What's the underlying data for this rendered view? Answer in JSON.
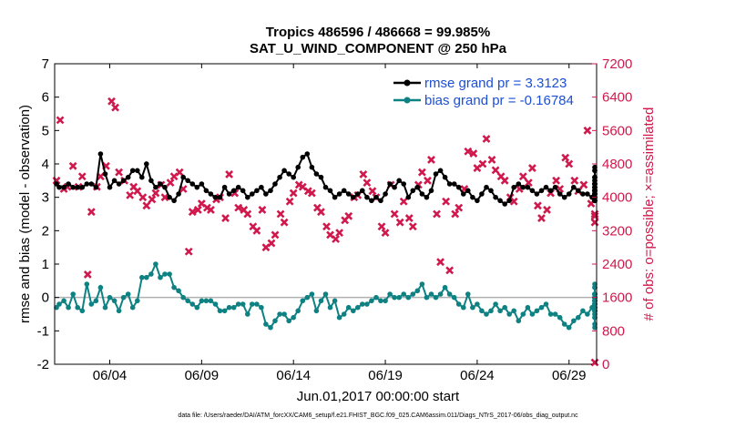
{
  "chart_data": {
    "type": "line",
    "title_line1": "Tropics 486596 / 486668 = 99.985%",
    "title_line2": "SAT_U_WIND_COMPONENT @ 250 hPa",
    "xlabel": "Jun.01,2017 00:00:00 start",
    "ylabel_left": "rmse and bias (model - observation)",
    "ylabel_right": "# of obs: o=possible; ×=assimilated",
    "xlim": [
      1,
      30.5
    ],
    "ylim_left": [
      -2,
      7
    ],
    "ylim_right": [
      0,
      7200
    ],
    "x_ticks": [
      4,
      9,
      14,
      19,
      24,
      29
    ],
    "x_tick_labels": [
      "06/04",
      "06/09",
      "06/14",
      "06/19",
      "06/24",
      "06/29"
    ],
    "y_ticks_left": [
      -2,
      -1,
      0,
      1,
      2,
      3,
      4,
      5,
      6,
      7
    ],
    "y_ticks_left_labels": [
      "-2",
      "-1",
      "0",
      "1",
      "2",
      "3",
      "4",
      "5",
      "6",
      "7"
    ],
    "y_ticks_right": [
      0,
      800,
      1600,
      2400,
      3200,
      4000,
      4800,
      5600,
      6400,
      7200
    ],
    "y_ticks_right_labels": [
      "0",
      "800",
      "1600",
      "2400",
      "3200",
      "4000",
      "4800",
      "5600",
      "6400",
      "7200"
    ],
    "zero_line": 0,
    "colors": {
      "rmse": "#000000",
      "bias": "#0e8282",
      "obs": "#d0184c",
      "legend_text": "#1c4fd6",
      "zero": "#b0b0b0"
    },
    "series": [
      {
        "name": "rmse grand pr = 3.3123",
        "axis": "left",
        "x_start": 1.0,
        "x_step": 0.25,
        "values": [
          3.4,
          3.3,
          3.3,
          3.4,
          3.3,
          3.3,
          3.3,
          3.4,
          3.4,
          3.3,
          4.3,
          3.7,
          3.3,
          3.5,
          3.4,
          3.5,
          3.6,
          3.8,
          3.8,
          3.6,
          4.0,
          3.5,
          3.3,
          3.4,
          3.3,
          3.0,
          2.9,
          3.1,
          3.6,
          3.5,
          3.4,
          3.3,
          3.4,
          3.2,
          3.1,
          3.0,
          3.0,
          3.3,
          3.1,
          3.2,
          3.3,
          3.2,
          3.0,
          3.1,
          3.2,
          3.3,
          3.1,
          3.2,
          3.4,
          3.6,
          3.8,
          3.7,
          3.6,
          3.9,
          4.2,
          4.3,
          3.9,
          3.7,
          3.6,
          3.3,
          3.2,
          3.0,
          3.1,
          3.2,
          3.1,
          3.0,
          3.1,
          3.2,
          3.0,
          2.9,
          3.0,
          2.9,
          3.1,
          3.4,
          3.3,
          3.5,
          3.4,
          3.0,
          3.2,
          3.3,
          3.1,
          3.0,
          3.2,
          3.7,
          3.8,
          3.6,
          3.4,
          3.4,
          3.3,
          3.1,
          3.2,
          3.0,
          2.9,
          3.1,
          3.3,
          3.2,
          3.0,
          2.9,
          2.8,
          2.9,
          3.3,
          3.4,
          3.3,
          3.3,
          3.2,
          3.1,
          3.2,
          3.3,
          3.2,
          3.3,
          3.1,
          3.0,
          3.1,
          3.3,
          3.2,
          3.1,
          3.1,
          3.0,
          2.9,
          3.0,
          3.3,
          3.8,
          3.6,
          3.5,
          3.8,
          3.4,
          3.9,
          3.6,
          3.4,
          3.4,
          3.3,
          3.5,
          3.4,
          3.2,
          3.3,
          2.9,
          2.9,
          3.0,
          3.1,
          3.2,
          3.6,
          3.4,
          3.1,
          3.0,
          3.1,
          3.1,
          3.0,
          3.0,
          3.1,
          3.2,
          3.1,
          3.2,
          3.0,
          3.0,
          2.9,
          3.1,
          3.3,
          3.2,
          3.1,
          3.2,
          3.2,
          3.1,
          2.9,
          3.1,
          3.0,
          3.0,
          3.0,
          2.9,
          3.1,
          3.2,
          3.2,
          3.2,
          3.2,
          3.2,
          3.2,
          3.2,
          3.2,
          3.2,
          3.2
        ]
      },
      {
        "name": "bias grand pr = -0.16784",
        "axis": "left",
        "x_start": 1.0,
        "x_step": 0.25,
        "values": [
          -0.3,
          -0.2,
          -0.1,
          -0.3,
          0.1,
          -0.3,
          -0.4,
          0.4,
          -0.2,
          -0.1,
          0.3,
          -0.3,
          0.0,
          -0.1,
          -0.4,
          0.0,
          0.1,
          -0.3,
          -0.1,
          0.6,
          0.6,
          0.7,
          1.0,
          0.6,
          0.7,
          0.7,
          0.3,
          0.2,
          0.0,
          -0.1,
          -0.2,
          -0.3,
          -0.1,
          -0.1,
          -0.1,
          -0.2,
          -0.4,
          -0.4,
          -0.3,
          -0.3,
          -0.2,
          -0.2,
          -0.5,
          -0.2,
          -0.2,
          -0.3,
          -0.8,
          -0.9,
          -0.7,
          -0.5,
          -0.5,
          -0.7,
          -0.6,
          -0.4,
          -0.1,
          0.0,
          0.1,
          -0.4,
          -0.1,
          0.1,
          -0.3,
          -0.1,
          -0.6,
          -0.5,
          -0.3,
          -0.4,
          -0.3,
          -0.2,
          -0.2,
          -0.1,
          0.0,
          -0.1,
          -0.1,
          0.1,
          0.0,
          0.0,
          0.1,
          0.0,
          0.1,
          0.2,
          0.4,
          0.0,
          0.1,
          0.0,
          0.1,
          0.3,
          0.1,
          0.0,
          -0.2,
          -0.3,
          0.1,
          -0.3,
          -0.2,
          -0.4,
          -0.5,
          -0.4,
          -0.2,
          -0.4,
          -0.3,
          -0.5,
          -0.4,
          -0.7,
          -0.5,
          -0.3,
          -0.5,
          -0.4,
          -0.3,
          -0.2,
          -0.5,
          -0.5,
          -0.6,
          -0.8,
          -0.9,
          -0.7,
          -0.6,
          -0.4,
          -0.5,
          -0.3,
          -0.4,
          -0.2,
          -0.3,
          0.0,
          -0.3,
          -0.1,
          -0.2,
          -0.4,
          -0.2,
          -0.1,
          -0.3,
          -0.2,
          -0.3,
          -0.3,
          -0.4,
          -0.2,
          -0.1,
          -0.1,
          -0.2,
          -0.1,
          0.0,
          0.1,
          0.1,
          -0.2,
          -0.1,
          -0.2,
          0.0,
          0.0,
          0.0,
          0.0,
          0.0,
          -0.1,
          0.0,
          0.1,
          0.1,
          0.3,
          0.3,
          0.4,
          0.1,
          0.0,
          -0.1,
          -0.3,
          -0.1,
          -0.3,
          -0.5,
          -0.4,
          -0.5,
          -0.9,
          -0.8,
          -0.6,
          -0.4,
          -0.3,
          -0.2,
          0.0,
          -0.1,
          -0.1,
          -0.3,
          -0.6,
          -0.4,
          -0.4
        ]
      },
      {
        "name": "obs assimilated",
        "axis": "right",
        "points": [
          [
            1.1,
            4400
          ],
          [
            1.3,
            5850
          ],
          [
            1.5,
            4200
          ],
          [
            1.7,
            4250
          ],
          [
            2.0,
            4750
          ],
          [
            2.3,
            4250
          ],
          [
            2.5,
            4500
          ],
          [
            2.8,
            2150
          ],
          [
            3.0,
            3650
          ],
          [
            3.3,
            4250
          ],
          [
            3.5,
            4500
          ],
          [
            3.8,
            4750
          ],
          [
            4.1,
            6300
          ],
          [
            4.3,
            6150
          ],
          [
            4.5,
            4600
          ],
          [
            4.8,
            4400
          ],
          [
            5.1,
            4050
          ],
          [
            5.3,
            4250
          ],
          [
            5.5,
            4150
          ],
          [
            5.8,
            4000
          ],
          [
            6.0,
            3800
          ],
          [
            6.3,
            3950
          ],
          [
            6.5,
            4100
          ],
          [
            6.8,
            4300
          ],
          [
            7.0,
            4000
          ],
          [
            7.3,
            4350
          ],
          [
            7.5,
            4500
          ],
          [
            7.8,
            4600
          ],
          [
            8.0,
            4200
          ],
          [
            8.3,
            2700
          ],
          [
            8.5,
            3650
          ],
          [
            8.8,
            3700
          ],
          [
            9.0,
            3850
          ],
          [
            9.3,
            3750
          ],
          [
            9.5,
            3700
          ],
          [
            9.8,
            3950
          ],
          [
            10.0,
            4000
          ],
          [
            10.3,
            3500
          ],
          [
            10.5,
            4550
          ],
          [
            10.8,
            4100
          ],
          [
            11.0,
            3750
          ],
          [
            11.3,
            3700
          ],
          [
            11.5,
            3600
          ],
          [
            11.8,
            3300
          ],
          [
            12.0,
            3200
          ],
          [
            12.3,
            3700
          ],
          [
            12.5,
            2800
          ],
          [
            12.8,
            2900
          ],
          [
            13.0,
            3100
          ],
          [
            13.3,
            3600
          ],
          [
            13.5,
            3400
          ],
          [
            13.8,
            3900
          ],
          [
            14.0,
            4100
          ],
          [
            14.3,
            4300
          ],
          [
            14.5,
            4250
          ],
          [
            14.8,
            4150
          ],
          [
            15.0,
            4100
          ],
          [
            15.3,
            3750
          ],
          [
            15.5,
            3650
          ],
          [
            15.8,
            3300
          ],
          [
            16.0,
            3100
          ],
          [
            16.3,
            3000
          ],
          [
            16.5,
            3150
          ],
          [
            16.8,
            3450
          ],
          [
            17.0,
            3550
          ],
          [
            17.3,
            4000
          ],
          [
            17.5,
            4050
          ],
          [
            17.8,
            4550
          ],
          [
            18.0,
            4350
          ],
          [
            18.3,
            4150
          ],
          [
            18.5,
            4000
          ],
          [
            18.8,
            3300
          ],
          [
            19.0,
            3150
          ],
          [
            19.3,
            4300
          ],
          [
            19.5,
            3600
          ],
          [
            19.8,
            3400
          ],
          [
            20.0,
            3900
          ],
          [
            20.3,
            3500
          ],
          [
            20.5,
            3300
          ],
          [
            20.8,
            4300
          ],
          [
            21.0,
            4600
          ],
          [
            21.3,
            4400
          ],
          [
            21.5,
            4900
          ],
          [
            21.8,
            3600
          ],
          [
            22.0,
            2450
          ],
          [
            22.3,
            3900
          ],
          [
            22.5,
            2250
          ],
          [
            22.8,
            3600
          ],
          [
            23.0,
            3750
          ],
          [
            23.3,
            4200
          ],
          [
            23.5,
            5100
          ],
          [
            23.8,
            5050
          ],
          [
            24.0,
            4700
          ],
          [
            24.3,
            4800
          ],
          [
            24.5,
            5400
          ],
          [
            24.8,
            4900
          ],
          [
            25.0,
            4650
          ],
          [
            25.3,
            4500
          ],
          [
            25.5,
            4400
          ],
          [
            25.8,
            4000
          ],
          [
            26.0,
            3900
          ],
          [
            26.3,
            4200
          ],
          [
            26.5,
            4500
          ],
          [
            26.8,
            4350
          ],
          [
            27.0,
            4700
          ],
          [
            27.3,
            3800
          ],
          [
            27.5,
            3500
          ],
          [
            27.8,
            3700
          ],
          [
            28.0,
            4100
          ],
          [
            28.3,
            4400
          ],
          [
            28.5,
            4200
          ],
          [
            28.8,
            4950
          ],
          [
            29.0,
            4800
          ],
          [
            29.3,
            4400
          ],
          [
            29.5,
            4150
          ],
          [
            29.8,
            4300
          ],
          [
            30.0,
            5600
          ],
          [
            30.2,
            3850
          ],
          [
            30.4,
            3600
          ],
          [
            30.6,
            3400
          ],
          [
            30.8,
            3550
          ],
          [
            31.0,
            0
          ]
        ]
      }
    ],
    "legend_placement": "top-right"
  },
  "footnote": "data file: /Users/raeder/DAI/ATM_forcXX/CAM6_setup/f.e21.FHIST_BGC.f09_025.CAM6assim.011/Diags_NTrS_2017-06/obs_diag_output.nc"
}
